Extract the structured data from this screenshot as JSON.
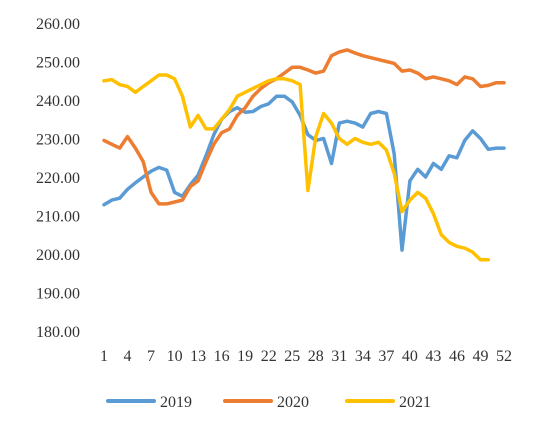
{
  "chart_data": {
    "type": "line",
    "title": "",
    "xlabel": "",
    "ylabel": "",
    "ylim": [
      180,
      260
    ],
    "y_ticks": [
      "180.00",
      "190.00",
      "200.00",
      "210.00",
      "220.00",
      "230.00",
      "240.00",
      "250.00",
      "260.00"
    ],
    "x_tick_labels": [
      "1",
      "4",
      "7",
      "10",
      "13",
      "16",
      "19",
      "22",
      "25",
      "28",
      "31",
      "34",
      "37",
      "40",
      "43",
      "46",
      "49",
      "52"
    ],
    "grid": false,
    "legend_position": "bottom",
    "series": [
      {
        "name": "2019",
        "color": "#5B9BD5",
        "x": [
          1,
          2,
          3,
          4,
          5,
          6,
          7,
          8,
          9,
          10,
          11,
          12,
          13,
          14,
          15,
          16,
          17,
          18,
          19,
          20,
          21,
          22,
          23,
          24,
          25,
          26,
          27,
          28,
          29,
          30,
          31,
          32,
          33,
          34,
          35,
          36,
          37,
          38,
          39,
          40,
          41,
          42,
          43,
          44,
          45,
          46,
          47,
          48,
          49,
          50,
          51,
          52
        ],
        "values": [
          212.8,
          214.0,
          214.5,
          216.8,
          218.5,
          220.0,
          221.5,
          222.5,
          221.8,
          216.0,
          215.0,
          218.0,
          220.5,
          225.5,
          231.0,
          235.0,
          237.0,
          238.0,
          236.8,
          237.0,
          238.3,
          239.0,
          241.0,
          241.0,
          239.5,
          236.0,
          231.0,
          229.5,
          230.0,
          223.5,
          234.0,
          234.5,
          234.0,
          233.0,
          236.5,
          237.0,
          236.5,
          226.0,
          201.0,
          219.0,
          222.0,
          220.0,
          223.5,
          222.0,
          225.5,
          225.0,
          229.5,
          232.0,
          230.0,
          227.2,
          227.5,
          227.5
        ]
      },
      {
        "name": "2020",
        "color": "#ED7D31",
        "x": [
          1,
          2,
          3,
          4,
          5,
          6,
          7,
          8,
          9,
          10,
          11,
          12,
          13,
          14,
          15,
          16,
          17,
          18,
          19,
          20,
          21,
          22,
          23,
          24,
          25,
          26,
          27,
          28,
          29,
          30,
          31,
          32,
          33,
          34,
          35,
          36,
          37,
          38,
          39,
          40,
          41,
          42,
          43,
          44,
          45,
          46,
          47,
          48,
          49,
          50,
          51,
          52
        ],
        "values": [
          229.5,
          228.5,
          227.5,
          230.5,
          227.5,
          224.0,
          216.0,
          213.0,
          213.0,
          213.5,
          214.0,
          217.5,
          219.0,
          224.0,
          228.5,
          231.5,
          232.5,
          236.0,
          238.0,
          241.0,
          243.0,
          244.5,
          245.5,
          247.0,
          248.5,
          248.5,
          247.8,
          247.0,
          247.5,
          251.5,
          252.5,
          253.0,
          252.2,
          251.5,
          251.0,
          250.5,
          250.0,
          249.5,
          247.5,
          247.8,
          247.0,
          245.5,
          246.0,
          245.5,
          245.0,
          244.0,
          246.0,
          245.5,
          243.5,
          243.8,
          244.5,
          244.5
        ]
      },
      {
        "name": "2021",
        "color": "#FFC000",
        "x": [
          1,
          2,
          3,
          4,
          5,
          6,
          7,
          8,
          9,
          10,
          11,
          12,
          13,
          14,
          15,
          16,
          17,
          18,
          19,
          20,
          21,
          22,
          23,
          24,
          25,
          26,
          27,
          28,
          29,
          30,
          31,
          32,
          33,
          34,
          35,
          36,
          37,
          38,
          39,
          40,
          41,
          42,
          43,
          44,
          45,
          46,
          47,
          48,
          49,
          50
        ],
        "values": [
          245.0,
          245.3,
          244.0,
          243.5,
          242.0,
          243.5,
          245.0,
          246.5,
          246.5,
          245.5,
          241.0,
          233.0,
          236.0,
          232.5,
          232.5,
          235.0,
          237.5,
          241.0,
          242.0,
          243.0,
          244.0,
          245.0,
          245.5,
          245.5,
          245.0,
          244.0,
          216.5,
          230.5,
          236.5,
          234.0,
          230.0,
          228.5,
          230.0,
          229.0,
          228.5,
          229.0,
          227.0,
          221.0,
          211.0,
          214.0,
          216.0,
          214.5,
          210.5,
          205.0,
          203.0,
          202.0,
          201.5,
          200.5,
          198.5,
          198.5
        ]
      }
    ]
  }
}
